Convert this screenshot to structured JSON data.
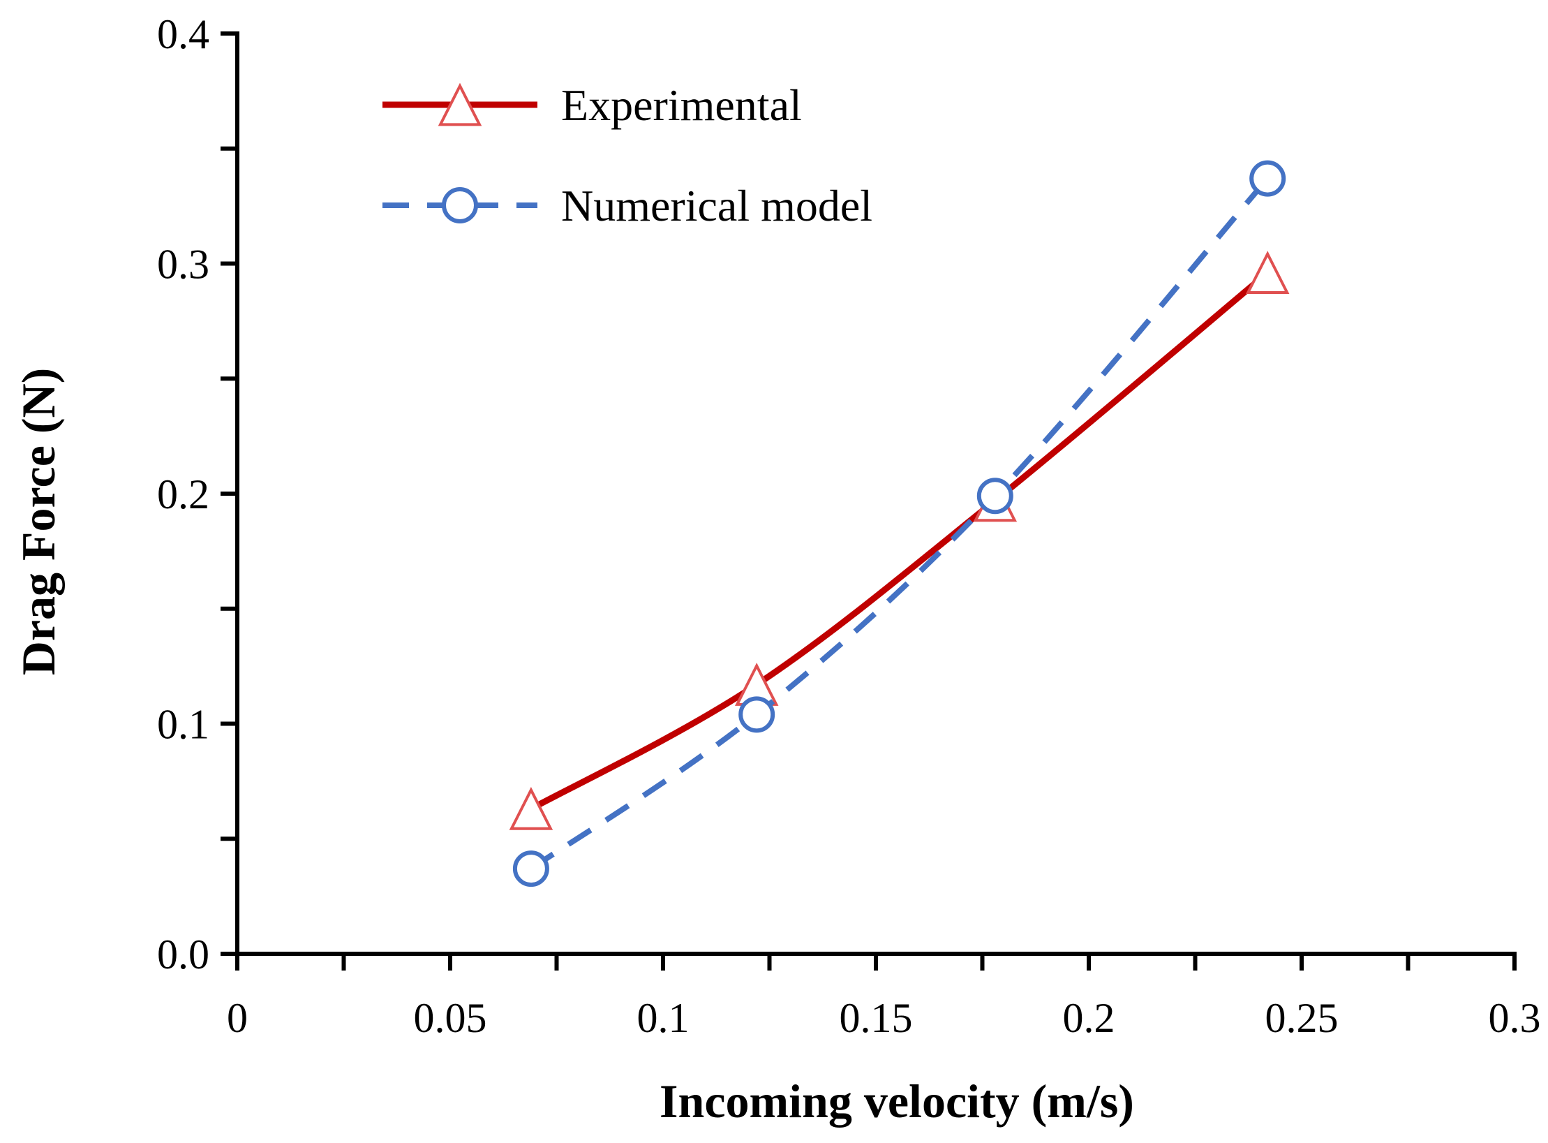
{
  "chart_data": {
    "type": "line",
    "title": "",
    "xlabel": "Incoming velocity (m/s)",
    "ylabel": "Drag Force (N)",
    "xlim": [
      0,
      0.3
    ],
    "ylim": [
      0,
      0.4
    ],
    "x_major_ticks": [
      0,
      0.05,
      0.1,
      0.15,
      0.2,
      0.25,
      0.3
    ],
    "x_tick_labels": [
      "0",
      "0.05",
      "0.1",
      "0.15",
      "0.2",
      "0.25",
      "0.3"
    ],
    "x_minor_step": 0.025,
    "y_major_ticks": [
      0,
      0.1,
      0.2,
      0.3,
      0.4
    ],
    "y_tick_labels": [
      "0.0",
      "0.1",
      "0.2",
      "0.3",
      "0.4"
    ],
    "y_minor_step": 0.05,
    "grid": false,
    "legend_position": "top-left",
    "series": [
      {
        "name": "Experimental",
        "x": [
          0.069,
          0.122,
          0.178,
          0.242
        ],
        "values": [
          0.063,
          0.117,
          0.197,
          0.296
        ],
        "color": "#C00000",
        "marker": "triangle",
        "marker_color": "#E05050",
        "line_style": "solid"
      },
      {
        "name": "Numerical model",
        "x": [
          0.069,
          0.122,
          0.178,
          0.242
        ],
        "values": [
          0.037,
          0.104,
          0.199,
          0.337
        ],
        "color": "#4472C4",
        "marker": "circle",
        "marker_color": "#4472C4",
        "line_style": "dashed"
      }
    ]
  }
}
